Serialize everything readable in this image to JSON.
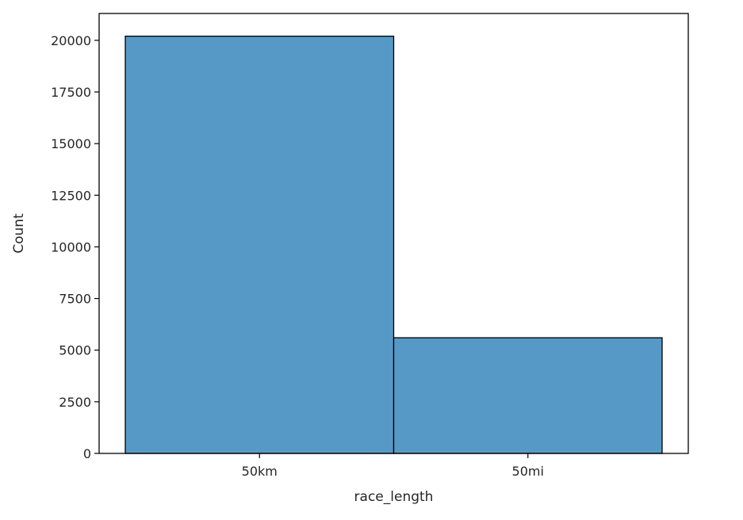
{
  "chart_data": {
    "type": "bar",
    "categories": [
      "50km",
      "50mi"
    ],
    "values": [
      20200,
      5600
    ],
    "title": "",
    "xlabel": "race_length",
    "ylabel": "Count",
    "ylim": [
      0,
      21300
    ],
    "yticks": [
      0,
      2500,
      5000,
      7500,
      10000,
      12500,
      15000,
      17500,
      20000
    ],
    "grid": false,
    "bar_color": "#5799c6",
    "edge_color": "#000000"
  }
}
